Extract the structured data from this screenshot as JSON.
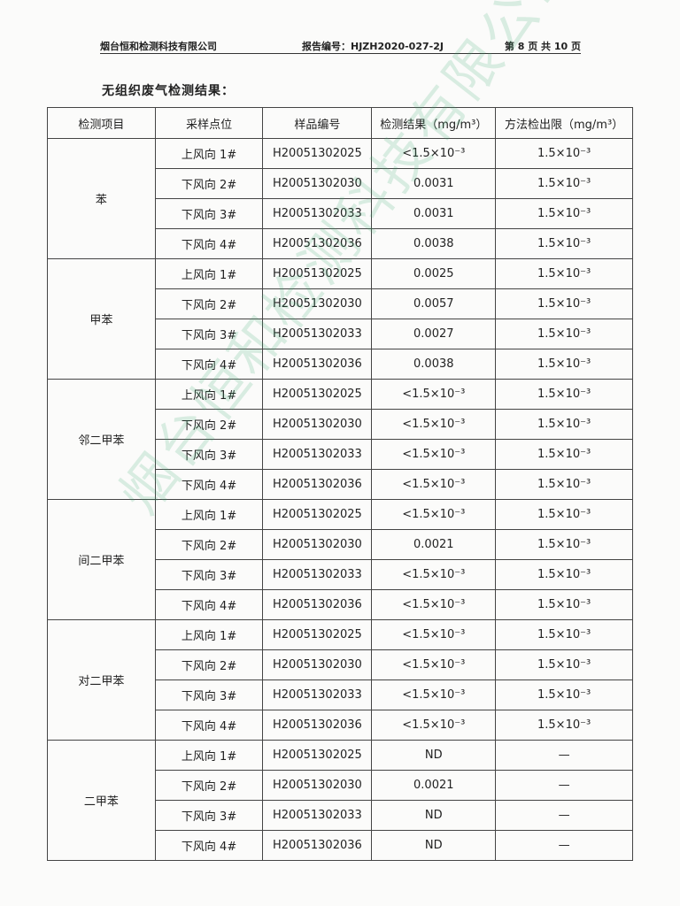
{
  "header": {
    "company": "烟台恒和检测科技有限公司",
    "report_no": "报告编号：HJZH2020-027-2J",
    "page": "第 8 页 共 10 页"
  },
  "section_title": "无组织废气检测结果：",
  "table": {
    "columns": [
      "检测项目",
      "采样点位",
      "样品编号",
      "检测结果（mg/m³）",
      "方法检出限（mg/m³）"
    ],
    "groups": [
      {
        "item": "苯",
        "rows": [
          [
            "上风向 1#",
            "H20051302025",
            "<1.5×10⁻³",
            "1.5×10⁻³"
          ],
          [
            "下风向 2#",
            "H20051302030",
            "0.0031",
            "1.5×10⁻³"
          ],
          [
            "下风向 3#",
            "H20051302033",
            "0.0031",
            "1.5×10⁻³"
          ],
          [
            "下风向 4#",
            "H20051302036",
            "0.0038",
            "1.5×10⁻³"
          ]
        ]
      },
      {
        "item": "甲苯",
        "rows": [
          [
            "上风向 1#",
            "H20051302025",
            "0.0025",
            "1.5×10⁻³"
          ],
          [
            "下风向 2#",
            "H20051302030",
            "0.0057",
            "1.5×10⁻³"
          ],
          [
            "下风向 3#",
            "H20051302033",
            "0.0027",
            "1.5×10⁻³"
          ],
          [
            "下风向 4#",
            "H20051302036",
            "0.0038",
            "1.5×10⁻³"
          ]
        ]
      },
      {
        "item": "邻二甲苯",
        "rows": [
          [
            "上风向 1#",
            "H20051302025",
            "<1.5×10⁻³",
            "1.5×10⁻³"
          ],
          [
            "下风向 2#",
            "H20051302030",
            "<1.5×10⁻³",
            "1.5×10⁻³"
          ],
          [
            "下风向 3#",
            "H20051302033",
            "<1.5×10⁻³",
            "1.5×10⁻³"
          ],
          [
            "下风向 4#",
            "H20051302036",
            "<1.5×10⁻³",
            "1.5×10⁻³"
          ]
        ]
      },
      {
        "item": "间二甲苯",
        "rows": [
          [
            "上风向 1#",
            "H20051302025",
            "<1.5×10⁻³",
            "1.5×10⁻³"
          ],
          [
            "下风向 2#",
            "H20051302030",
            "0.0021",
            "1.5×10⁻³"
          ],
          [
            "下风向 3#",
            "H20051302033",
            "<1.5×10⁻³",
            "1.5×10⁻³"
          ],
          [
            "下风向 4#",
            "H20051302036",
            "<1.5×10⁻³",
            "1.5×10⁻³"
          ]
        ]
      },
      {
        "item": "对二甲苯",
        "rows": [
          [
            "上风向 1#",
            "H20051302025",
            "<1.5×10⁻³",
            "1.5×10⁻³"
          ],
          [
            "下风向 2#",
            "H20051302030",
            "<1.5×10⁻³",
            "1.5×10⁻³"
          ],
          [
            "下风向 3#",
            "H20051302033",
            "<1.5×10⁻³",
            "1.5×10⁻³"
          ],
          [
            "下风向 4#",
            "H20051302036",
            "<1.5×10⁻³",
            "1.5×10⁻³"
          ]
        ]
      },
      {
        "item": "二甲苯",
        "rows": [
          [
            "上风向 1#",
            "H20051302025",
            "ND",
            "—"
          ],
          [
            "下风向 2#",
            "H20051302030",
            "0.0021",
            "—"
          ],
          [
            "下风向 3#",
            "H20051302033",
            "ND",
            "—"
          ],
          [
            "下风向 4#",
            "H20051302036",
            "ND",
            "—"
          ]
        ]
      }
    ]
  },
  "watermark": "烟台恒和检测科技有限公司"
}
